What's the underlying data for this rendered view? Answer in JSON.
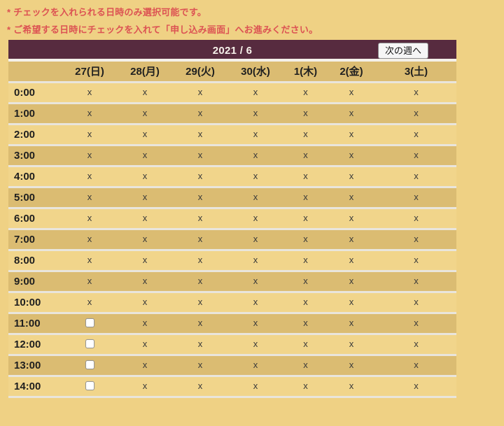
{
  "notes": [
    "* チェックを入れられる日時のみ選択可能です。",
    "* ご希望する日時にチェックを入れて「申し込み画面」へお進みください。"
  ],
  "calendar": {
    "title": "2021 / 6",
    "next_week_label": "次の週へ",
    "days": [
      "27(日)",
      "28(月)",
      "29(火)",
      "30(水)",
      "1(木)",
      "2(金)",
      "3(土)"
    ],
    "unavailable_mark": "x",
    "rows": [
      {
        "time": "0:00",
        "cells": [
          "x",
          "x",
          "x",
          "x",
          "x",
          "x",
          "x"
        ]
      },
      {
        "time": "1:00",
        "cells": [
          "x",
          "x",
          "x",
          "x",
          "x",
          "x",
          "x"
        ]
      },
      {
        "time": "2:00",
        "cells": [
          "x",
          "x",
          "x",
          "x",
          "x",
          "x",
          "x"
        ]
      },
      {
        "time": "3:00",
        "cells": [
          "x",
          "x",
          "x",
          "x",
          "x",
          "x",
          "x"
        ]
      },
      {
        "time": "4:00",
        "cells": [
          "x",
          "x",
          "x",
          "x",
          "x",
          "x",
          "x"
        ]
      },
      {
        "time": "5:00",
        "cells": [
          "x",
          "x",
          "x",
          "x",
          "x",
          "x",
          "x"
        ]
      },
      {
        "time": "6:00",
        "cells": [
          "x",
          "x",
          "x",
          "x",
          "x",
          "x",
          "x"
        ]
      },
      {
        "time": "7:00",
        "cells": [
          "x",
          "x",
          "x",
          "x",
          "x",
          "x",
          "x"
        ]
      },
      {
        "time": "8:00",
        "cells": [
          "x",
          "x",
          "x",
          "x",
          "x",
          "x",
          "x"
        ]
      },
      {
        "time": "9:00",
        "cells": [
          "x",
          "x",
          "x",
          "x",
          "x",
          "x",
          "x"
        ]
      },
      {
        "time": "10:00",
        "cells": [
          "x",
          "x",
          "x",
          "x",
          "x",
          "x",
          "x"
        ]
      },
      {
        "time": "11:00",
        "cells": [
          "checkbox",
          "x",
          "x",
          "x",
          "x",
          "x",
          "x"
        ]
      },
      {
        "time": "12:00",
        "cells": [
          "checkbox",
          "x",
          "x",
          "x",
          "x",
          "x",
          "x"
        ]
      },
      {
        "time": "13:00",
        "cells": [
          "checkbox",
          "x",
          "x",
          "x",
          "x",
          "x",
          "x"
        ]
      },
      {
        "time": "14:00",
        "cells": [
          "checkbox",
          "x",
          "x",
          "x",
          "x",
          "x",
          "x"
        ]
      }
    ],
    "checkbox_states": {
      "checked": false
    }
  },
  "colors": {
    "page_bg": "#EFD184",
    "row_light": "#F1D58B",
    "row_dark": "#DBBC72",
    "calendar_header_bg": "#572B3F",
    "note_text": "#DC5353",
    "separator": "#E9E5DC",
    "title_text": "#F6F1EA",
    "mark_color": "#3A3A3A"
  }
}
